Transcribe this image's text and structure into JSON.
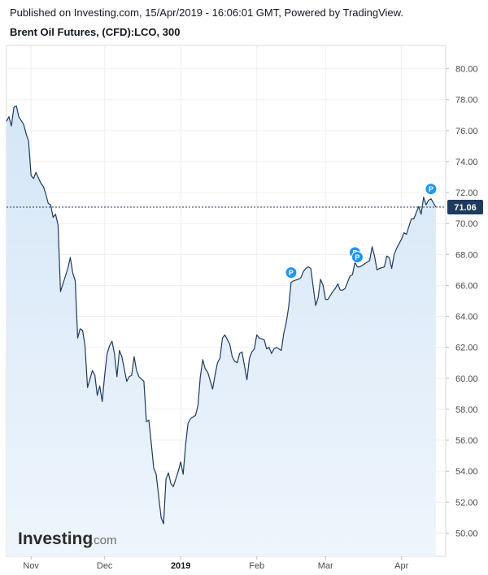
{
  "header": {
    "published": "Published on Investing.com, 15/Apr/2019 - 16:06:01 GMT, Powered by TradingView.",
    "title": "Brent Oil Futures, (CFD):LCO, 300"
  },
  "logo": {
    "brand": "Investing",
    "suffix": ".com"
  },
  "colors": {
    "line": "#1e3a5f",
    "fill_top": "#d5e6f7",
    "fill_bottom": "#eef5fc",
    "marker": "#2196f3",
    "last_badge": "#1e3a5f"
  },
  "chart_data": {
    "type": "area",
    "title": "Brent Oil Futures, (CFD):LCO, 300",
    "xlabel": "",
    "ylabel": "",
    "ylim": [
      48.5,
      81.5
    ],
    "y_ticks": [
      "80.00",
      "78.00",
      "76.00",
      "74.00",
      "72.00",
      "70.00",
      "68.00",
      "66.00",
      "64.00",
      "62.00",
      "60.00",
      "58.00",
      "56.00",
      "54.00",
      "52.00",
      "50.00"
    ],
    "x_ticks": [
      {
        "label": "Nov",
        "date": "2018-11-01"
      },
      {
        "label": "Dec",
        "date": "2018-12-01"
      },
      {
        "label": "2019",
        "date": "2019-01-01",
        "bold": true
      },
      {
        "label": "Feb",
        "date": "2019-02-01"
      },
      {
        "label": "Mar",
        "date": "2019-03-01"
      },
      {
        "label": "Apr",
        "date": "2019-04-01"
      }
    ],
    "x_start": "2018-10-22",
    "x_end": "2019-04-19",
    "series": [
      {
        "points": [
          [
            "2018-10-22",
            76.6
          ],
          [
            "2018-10-23",
            76.9
          ],
          [
            "2018-10-24",
            76.3
          ],
          [
            "2018-10-25",
            77.5
          ],
          [
            "2018-10-26",
            77.6
          ],
          [
            "2018-10-27",
            76.9
          ],
          [
            "2018-10-29",
            76.4
          ],
          [
            "2018-10-30",
            75.8
          ],
          [
            "2018-10-31",
            75.3
          ],
          [
            "2018-11-01",
            73.1
          ],
          [
            "2018-11-02",
            72.9
          ],
          [
            "2018-11-03",
            73.3
          ],
          [
            "2018-11-05",
            72.6
          ],
          [
            "2018-11-06",
            72.4
          ],
          [
            "2018-11-07",
            71.9
          ],
          [
            "2018-11-08",
            71.3
          ],
          [
            "2018-11-09",
            71.2
          ],
          [
            "2018-11-10",
            70.4
          ],
          [
            "2018-11-11",
            70.6
          ],
          [
            "2018-11-12",
            69.9
          ],
          [
            "2018-11-13",
            65.6
          ],
          [
            "2018-11-14",
            66.1
          ],
          [
            "2018-11-15",
            66.6
          ],
          [
            "2018-11-16",
            67.1
          ],
          [
            "2018-11-17",
            67.8
          ],
          [
            "2018-11-18",
            66.8
          ],
          [
            "2018-11-19",
            66.3
          ],
          [
            "2018-11-20",
            62.6
          ],
          [
            "2018-11-21",
            63.2
          ],
          [
            "2018-11-22",
            63.1
          ],
          [
            "2018-11-23",
            62.1
          ],
          [
            "2018-11-24",
            59.4
          ],
          [
            "2018-11-26",
            60.5
          ],
          [
            "2018-11-27",
            60.2
          ],
          [
            "2018-11-28",
            58.9
          ],
          [
            "2018-11-29",
            59.5
          ],
          [
            "2018-11-30",
            58.5
          ],
          [
            "2018-12-01",
            60.2
          ],
          [
            "2018-12-02",
            61.6
          ],
          [
            "2018-12-03",
            62.1
          ],
          [
            "2018-12-04",
            62.4
          ],
          [
            "2018-12-05",
            61.6
          ],
          [
            "2018-12-06",
            60.1
          ],
          [
            "2018-12-07",
            61.8
          ],
          [
            "2018-12-08",
            61.4
          ],
          [
            "2018-12-10",
            59.8
          ],
          [
            "2018-12-11",
            60.1
          ],
          [
            "2018-12-12",
            60.2
          ],
          [
            "2018-12-13",
            61.4
          ],
          [
            "2018-12-14",
            60.5
          ],
          [
            "2018-12-15",
            60.1
          ],
          [
            "2018-12-17",
            59.8
          ],
          [
            "2018-12-18",
            57.2
          ],
          [
            "2018-12-19",
            57.3
          ],
          [
            "2018-12-20",
            55.8
          ],
          [
            "2018-12-21",
            54.2
          ],
          [
            "2018-12-22",
            53.8
          ],
          [
            "2018-12-24",
            51.0
          ],
          [
            "2018-12-25",
            50.6
          ],
          [
            "2018-12-26",
            53.5
          ],
          [
            "2018-12-27",
            53.9
          ],
          [
            "2018-12-28",
            53.2
          ],
          [
            "2018-12-29",
            53.0
          ],
          [
            "2018-12-31",
            54.0
          ],
          [
            "2019-01-01",
            54.6
          ],
          [
            "2019-01-02",
            53.8
          ],
          [
            "2019-01-03",
            55.7
          ],
          [
            "2019-01-04",
            57.1
          ],
          [
            "2019-01-05",
            57.4
          ],
          [
            "2019-01-07",
            57.6
          ],
          [
            "2019-01-08",
            58.2
          ],
          [
            "2019-01-09",
            60.1
          ],
          [
            "2019-01-10",
            61.2
          ],
          [
            "2019-01-11",
            60.6
          ],
          [
            "2019-01-12",
            60.4
          ],
          [
            "2019-01-14",
            59.3
          ],
          [
            "2019-01-15",
            60.2
          ],
          [
            "2019-01-16",
            61.0
          ],
          [
            "2019-01-17",
            61.3
          ],
          [
            "2019-01-18",
            62.6
          ],
          [
            "2019-01-19",
            62.8
          ],
          [
            "2019-01-21",
            62.2
          ],
          [
            "2019-01-22",
            61.4
          ],
          [
            "2019-01-23",
            61.1
          ],
          [
            "2019-01-24",
            61.0
          ],
          [
            "2019-01-25",
            61.6
          ],
          [
            "2019-01-26",
            61.7
          ],
          [
            "2019-01-28",
            59.9
          ],
          [
            "2019-01-29",
            61.3
          ],
          [
            "2019-01-30",
            61.7
          ],
          [
            "2019-01-31",
            61.9
          ],
          [
            "2019-02-01",
            62.8
          ],
          [
            "2019-02-02",
            62.6
          ],
          [
            "2019-02-04",
            62.5
          ],
          [
            "2019-02-05",
            61.9
          ],
          [
            "2019-02-06",
            62.0
          ],
          [
            "2019-02-07",
            61.6
          ],
          [
            "2019-02-08",
            61.9
          ],
          [
            "2019-02-09",
            62.0
          ],
          [
            "2019-02-11",
            61.8
          ],
          [
            "2019-02-12",
            62.9
          ],
          [
            "2019-02-13",
            63.6
          ],
          [
            "2019-02-14",
            64.6
          ],
          [
            "2019-02-15",
            66.2
          ],
          [
            "2019-02-16",
            66.3
          ],
          [
            "2019-02-18",
            66.4
          ],
          [
            "2019-02-19",
            66.5
          ],
          [
            "2019-02-20",
            66.9
          ],
          [
            "2019-02-21",
            67.1
          ],
          [
            "2019-02-22",
            67.2
          ],
          [
            "2019-02-23",
            67.1
          ],
          [
            "2019-02-25",
            64.7
          ],
          [
            "2019-02-26",
            65.2
          ],
          [
            "2019-02-27",
            66.4
          ],
          [
            "2019-02-28",
            66.0
          ],
          [
            "2019-03-01",
            65.1
          ],
          [
            "2019-03-02",
            65.1
          ],
          [
            "2019-03-04",
            65.6
          ],
          [
            "2019-03-05",
            65.8
          ],
          [
            "2019-03-06",
            66.1
          ],
          [
            "2019-03-07",
            65.7
          ],
          [
            "2019-03-08",
            65.7
          ],
          [
            "2019-03-09",
            65.8
          ],
          [
            "2019-03-11",
            66.6
          ],
          [
            "2019-03-12",
            66.7
          ],
          [
            "2019-03-13",
            67.5
          ],
          [
            "2019-03-14",
            67.2
          ],
          [
            "2019-03-15",
            67.2
          ],
          [
            "2019-03-16",
            67.3
          ],
          [
            "2019-03-18",
            67.5
          ],
          [
            "2019-03-19",
            67.6
          ],
          [
            "2019-03-20",
            68.5
          ],
          [
            "2019-03-21",
            67.9
          ],
          [
            "2019-03-22",
            67.0
          ],
          [
            "2019-03-23",
            67.1
          ],
          [
            "2019-03-25",
            67.2
          ],
          [
            "2019-03-26",
            67.9
          ],
          [
            "2019-03-27",
            67.8
          ],
          [
            "2019-03-28",
            67.1
          ],
          [
            "2019-03-29",
            68.0
          ],
          [
            "2019-03-30",
            68.4
          ],
          [
            "2019-04-01",
            69.0
          ],
          [
            "2019-04-02",
            69.4
          ],
          [
            "2019-04-03",
            69.3
          ],
          [
            "2019-04-04",
            69.8
          ],
          [
            "2019-04-05",
            70.3
          ],
          [
            "2019-04-06",
            70.3
          ],
          [
            "2019-04-08",
            71.1
          ],
          [
            "2019-04-09",
            70.6
          ],
          [
            "2019-04-10",
            71.7
          ],
          [
            "2019-04-11",
            71.2
          ],
          [
            "2019-04-12",
            71.5
          ],
          [
            "2019-04-13",
            71.6
          ],
          [
            "2019-04-15",
            71.06
          ]
        ]
      }
    ],
    "last_value": 71.06,
    "last_value_label": "71.06",
    "event_markers": [
      {
        "date": "2019-02-15",
        "value": 66.2,
        "label": "P"
      },
      {
        "date": "2019-03-13",
        "value": 67.5,
        "label": "P"
      },
      {
        "date": "2019-03-14",
        "value": 67.2,
        "label": "P"
      },
      {
        "date": "2019-04-13",
        "value": 71.6,
        "label": "P"
      }
    ],
    "grid": true,
    "legend": "none"
  }
}
